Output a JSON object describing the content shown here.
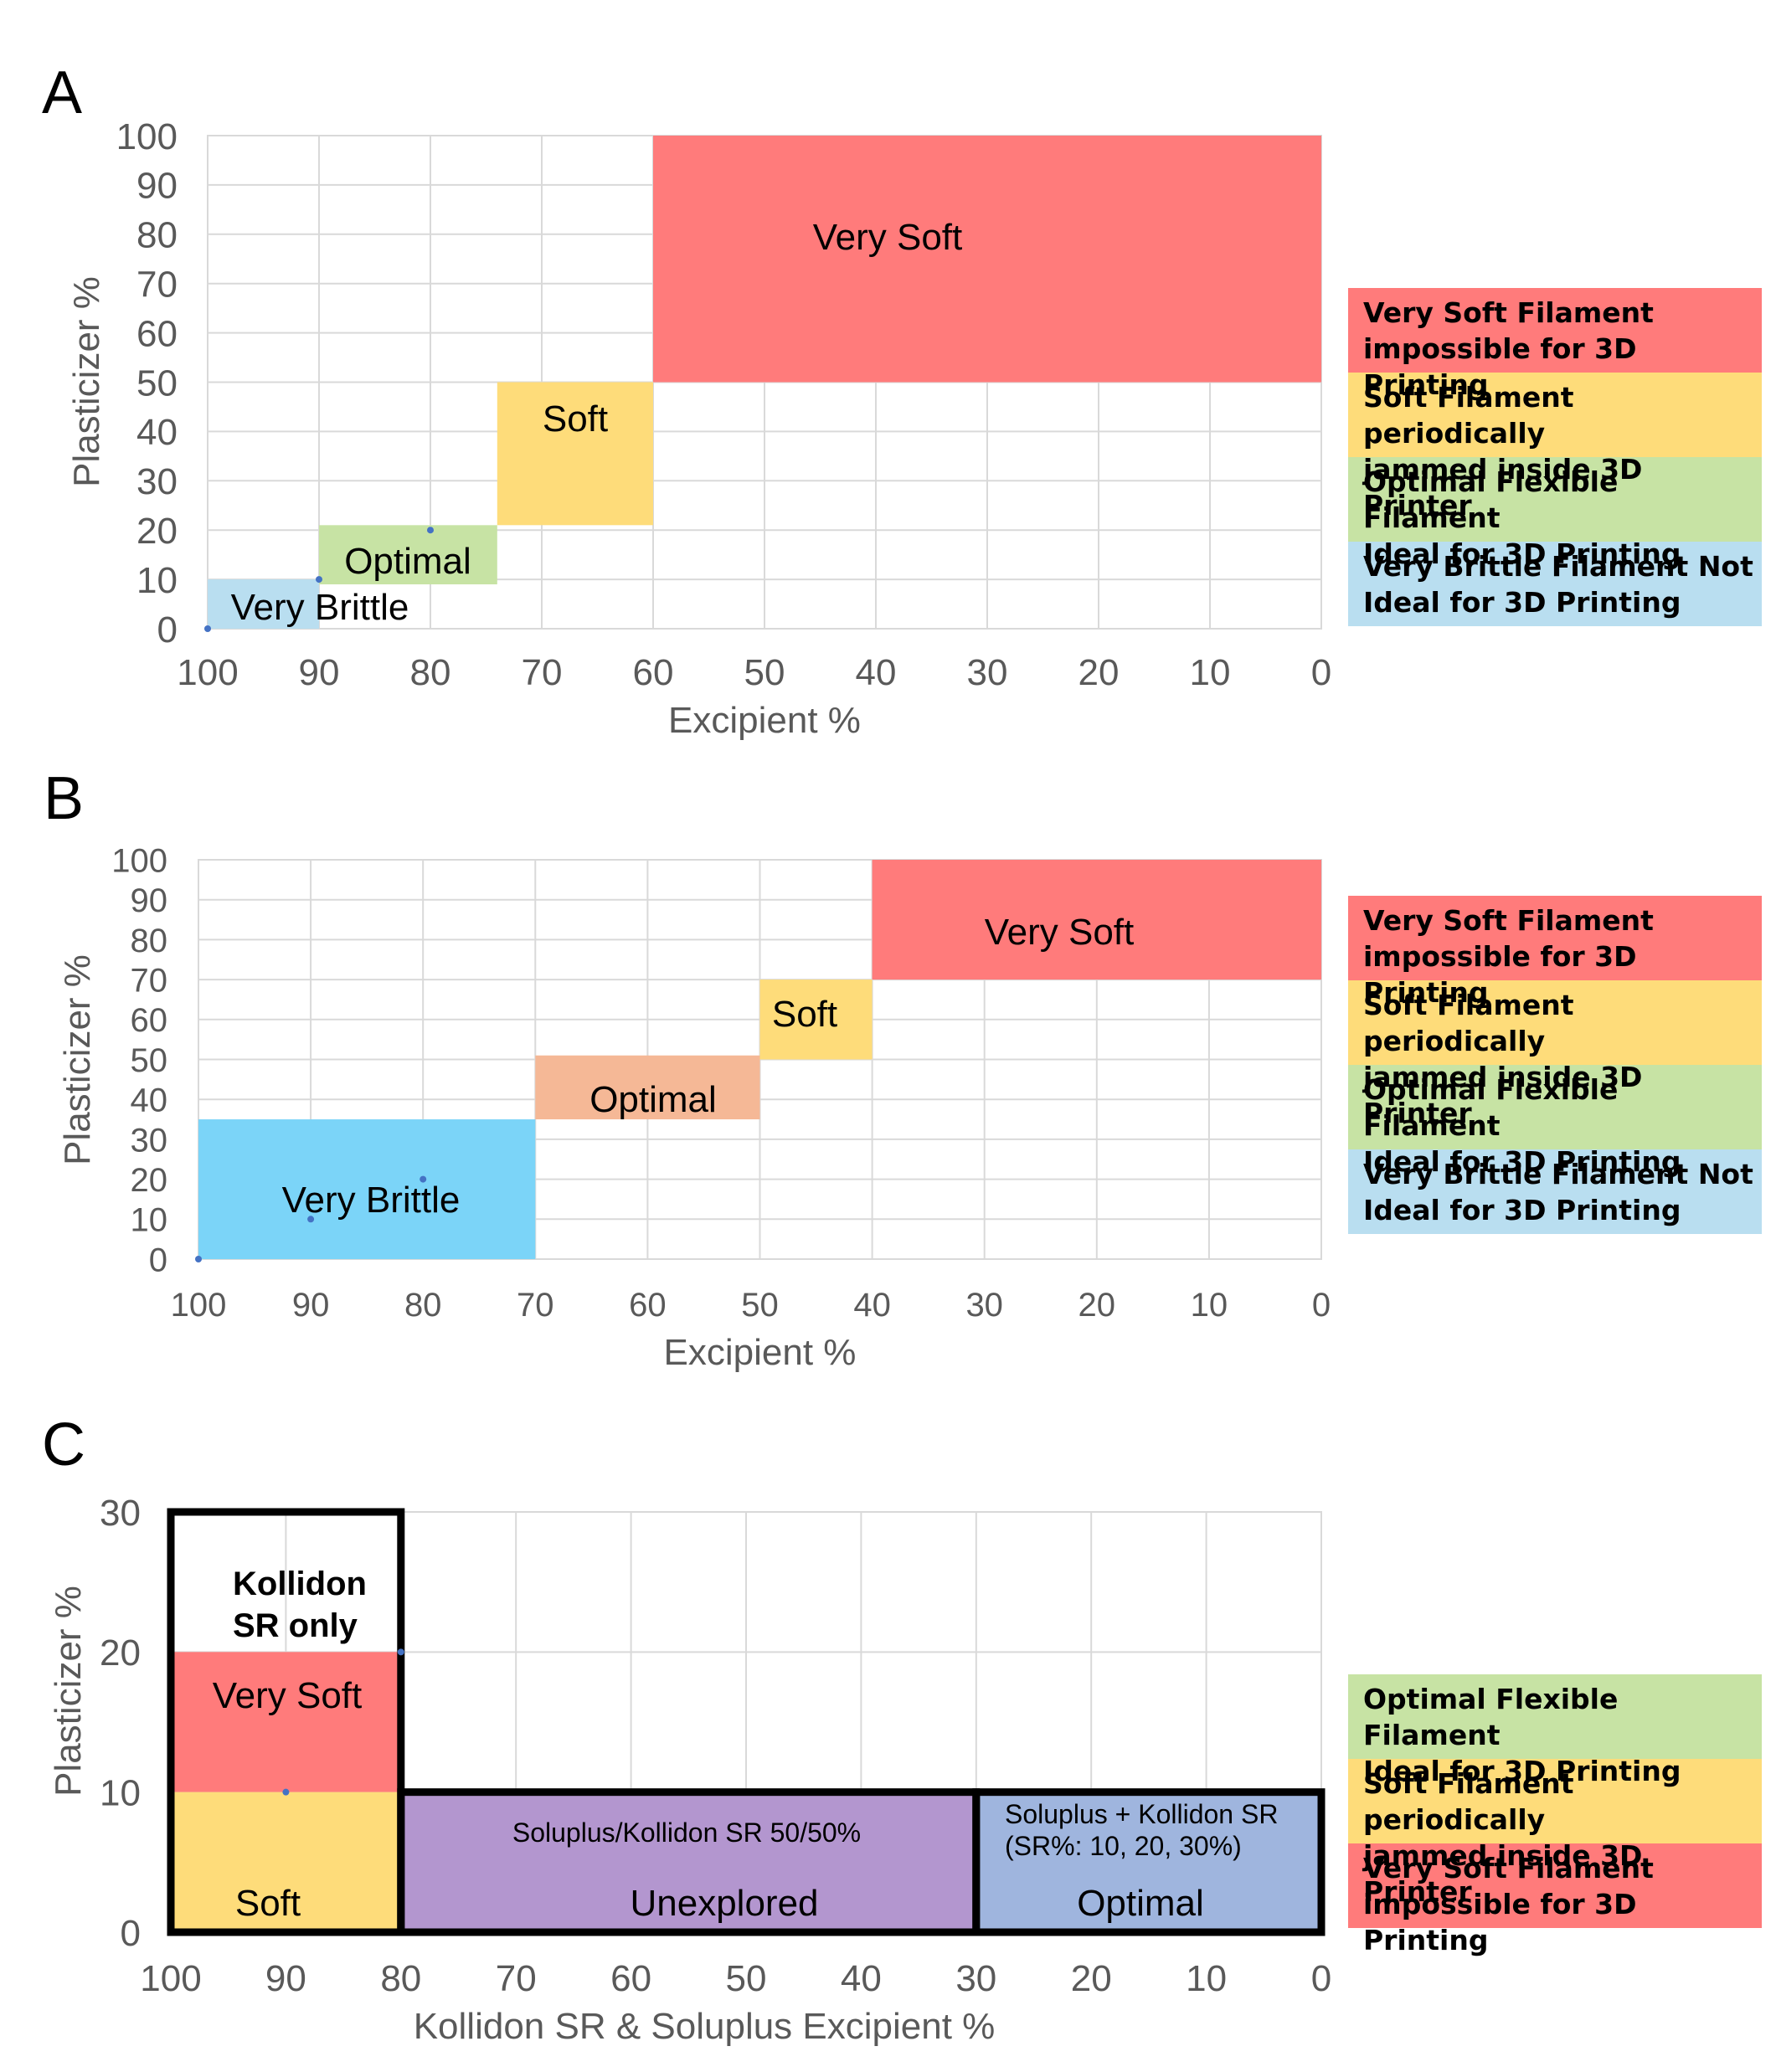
{
  "colors": {
    "very_soft": "#ff7b7b",
    "soft": "#fedc7a",
    "optimal_green": "#c7e3a4",
    "optimal_orange": "#f5b896",
    "very_brittle_light": "#b9def0",
    "very_brittle_bright": "#7bd4f8",
    "unexplored": "#b396cf",
    "optimal_blue": "#9fb5de",
    "grid": "#d9d9d9",
    "axis_text": "#595959"
  },
  "legend_text": {
    "very_soft": [
      "Very Soft Filament",
      "impossible for 3D Printing"
    ],
    "soft": [
      "Soft Filament periodically",
      "jammed inside 3D Printer"
    ],
    "optimal": [
      "Optimal Flexible Filament",
      "Ideal for 3D Printing"
    ],
    "very_brittle": [
      "Very Brittle Filament Not",
      "Ideal for 3D Printing"
    ]
  },
  "chart_data": [
    {
      "panel_label": "A",
      "type": "area",
      "xlabel": "Excipient %",
      "ylabel": "Plasticizer %",
      "xlim": [
        100,
        0
      ],
      "ylim": [
        0,
        100
      ],
      "x_ticks": [
        100,
        90,
        80,
        70,
        60,
        50,
        40,
        30,
        20,
        10,
        0
      ],
      "y_ticks": [
        0,
        10,
        20,
        30,
        40,
        50,
        60,
        70,
        80,
        90,
        100
      ],
      "grid": true,
      "regions": [
        {
          "label": "Very Soft",
          "x": [
            60,
            0
          ],
          "y": [
            50,
            100
          ],
          "color": "very_soft"
        },
        {
          "label": "Soft",
          "x": [
            74,
            60
          ],
          "y": [
            21,
            50
          ],
          "color": "soft"
        },
        {
          "label": "Optimal",
          "x": [
            90,
            74
          ],
          "y": [
            9,
            21
          ],
          "color": "optimal_green"
        },
        {
          "label": "Very Brittle",
          "x": [
            100,
            90
          ],
          "y": [
            0,
            10
          ],
          "color": "very_brittle_light"
        }
      ],
      "points": [
        {
          "x": 100,
          "y": 0
        },
        {
          "x": 90,
          "y": 10
        },
        {
          "x": 80,
          "y": 20
        }
      ],
      "legend": [
        "very_soft",
        "soft",
        "optimal",
        "very_brittle"
      ],
      "legend_colors": [
        "very_soft",
        "soft",
        "optimal_green",
        "very_brittle_light"
      ]
    },
    {
      "panel_label": "B",
      "type": "area",
      "xlabel": "Excipient %",
      "ylabel": "Plasticizer %",
      "xlim": [
        100,
        0
      ],
      "ylim": [
        0,
        100
      ],
      "x_ticks": [
        100,
        90,
        80,
        70,
        60,
        50,
        40,
        30,
        20,
        10,
        0
      ],
      "y_ticks": [
        0,
        10,
        20,
        30,
        40,
        50,
        60,
        70,
        80,
        90,
        100
      ],
      "grid": true,
      "regions": [
        {
          "label": "Very Soft",
          "x": [
            40,
            0
          ],
          "y": [
            70,
            100
          ],
          "color": "very_soft"
        },
        {
          "label": "Soft",
          "x": [
            50,
            40
          ],
          "y": [
            50,
            70
          ],
          "color": "soft"
        },
        {
          "label": "Optimal",
          "x": [
            70,
            50
          ],
          "y": [
            35,
            51
          ],
          "color": "optimal_orange"
        },
        {
          "label": "Very Brittle",
          "x": [
            100,
            70
          ],
          "y": [
            0,
            35
          ],
          "color": "very_brittle_bright"
        }
      ],
      "points": [
        {
          "x": 100,
          "y": 0
        },
        {
          "x": 90,
          "y": 10
        },
        {
          "x": 80,
          "y": 20
        }
      ],
      "legend": [
        "very_soft",
        "soft",
        "optimal",
        "very_brittle"
      ],
      "legend_colors": [
        "very_soft",
        "soft",
        "optimal_green",
        "very_brittle_light"
      ]
    },
    {
      "panel_label": "C",
      "type": "area",
      "xlabel": "Kollidon SR & Soluplus Excipient %",
      "ylabel": "Plasticizer %",
      "xlim": [
        100,
        0
      ],
      "ylim": [
        0,
        30
      ],
      "x_ticks": [
        100,
        90,
        80,
        70,
        60,
        50,
        40,
        30,
        20,
        10,
        0
      ],
      "y_ticks": [
        0,
        10,
        20,
        30
      ],
      "grid": true,
      "regions": [
        {
          "label": "Very Soft",
          "x": [
            100,
            80
          ],
          "y": [
            10,
            20
          ],
          "color": "very_soft"
        },
        {
          "label": "Soft",
          "x": [
            100,
            80
          ],
          "y": [
            0,
            10
          ],
          "color": "soft"
        },
        {
          "label": "Unexplored",
          "sublabel": "Soluplus/Kollidon  SR 50/50%",
          "x": [
            80,
            30
          ],
          "y": [
            0,
            10
          ],
          "color": "unexplored"
        },
        {
          "label": "Optimal",
          "sublabel_lines": [
            "Soluplus + Kollidon SR",
            "(SR%: 10, 20, 30%)"
          ],
          "x": [
            30,
            0
          ],
          "y": [
            0,
            10
          ],
          "color": "optimal_blue"
        }
      ],
      "boxes": [
        {
          "label_lines": [
            "Kollidon",
            "SR only"
          ],
          "x": [
            100,
            80
          ],
          "y": [
            0,
            30
          ]
        },
        {
          "x": [
            80,
            30
          ],
          "y": [
            0,
            10
          ]
        },
        {
          "x": [
            30,
            0
          ],
          "y": [
            0,
            10
          ]
        }
      ],
      "points": [
        {
          "x": 90,
          "y": 10
        },
        {
          "x": 80,
          "y": 20
        }
      ],
      "legend": [
        "optimal",
        "soft",
        "very_soft"
      ],
      "legend_colors": [
        "optimal_green",
        "soft",
        "very_soft"
      ]
    }
  ]
}
